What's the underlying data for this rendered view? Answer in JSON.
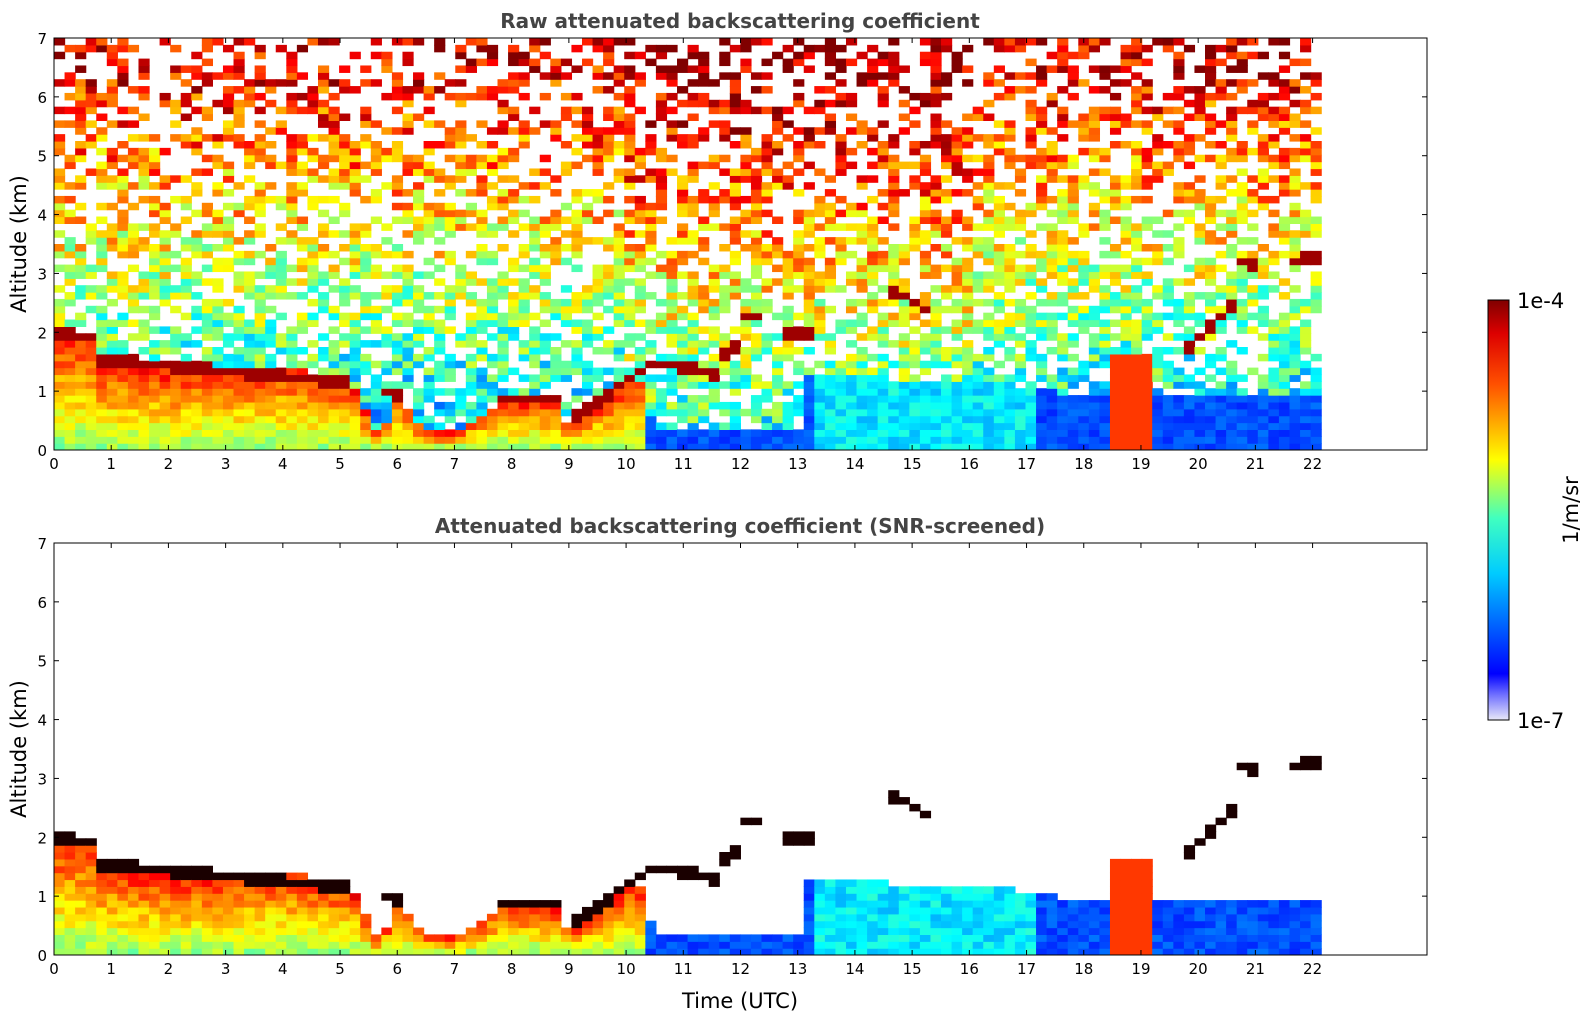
{
  "chart_data": [
    {
      "type": "heatmap",
      "title": "Raw attenuated backscattering coefficient",
      "xlabel": "",
      "ylabel": "Altitude (km)",
      "xlim": [
        0,
        24
      ],
      "ylim": [
        0,
        7
      ],
      "xticks": [
        "0",
        "1",
        "2",
        "3",
        "4",
        "5",
        "6",
        "7",
        "8",
        "9",
        "10",
        "11",
        "12",
        "13",
        "14",
        "15",
        "16",
        "17",
        "18",
        "19",
        "20",
        "21",
        "22"
      ],
      "yticks": [
        "0",
        "1",
        "2",
        "3",
        "4",
        "5",
        "6",
        "7"
      ],
      "data_end_time": 22.15,
      "screened": false,
      "cloud_layers": [
        {
          "t": [
            0,
            0.7
          ],
          "alt": [
            2.0,
            1.9
          ]
        },
        {
          "t": [
            0.7,
            5.2
          ],
          "alt": [
            1.55,
            1.15
          ]
        },
        {
          "t": [
            5.8,
            6.0
          ],
          "alt": [
            1.0,
            0.95
          ]
        },
        {
          "t": [
            7.8,
            8.8
          ],
          "alt": [
            0.85,
            0.85
          ]
        },
        {
          "t": [
            9.0,
            10.5
          ],
          "alt": [
            0.5,
            1.5
          ]
        },
        {
          "t": [
            10.5,
            11.6
          ],
          "alt": [
            1.5,
            1.3
          ]
        },
        {
          "t": [
            11.6,
            12.0
          ],
          "alt": [
            1.6,
            1.8
          ]
        },
        {
          "t": [
            12.0,
            12.3
          ],
          "alt": [
            2.3,
            2.3
          ]
        },
        {
          "t": [
            12.7,
            13.2
          ],
          "alt": [
            2.0,
            2.0
          ]
        },
        {
          "t": [
            14.5,
            15.4
          ],
          "alt": [
            2.8,
            2.3
          ]
        },
        {
          "t": [
            19.8,
            20.6
          ],
          "alt": [
            1.7,
            2.5
          ]
        },
        {
          "t": [
            20.6,
            21.0
          ],
          "alt": [
            3.3,
            3.1
          ]
        },
        {
          "t": [
            21.6,
            22.15
          ],
          "alt": [
            3.2,
            3.3
          ]
        }
      ]
    },
    {
      "type": "heatmap",
      "title": "Attenuated backscattering coefficient (SNR-screened)",
      "xlabel": "Time (UTC)",
      "ylabel": "Altitude (km)",
      "xlim": [
        0,
        24
      ],
      "ylim": [
        0,
        7
      ],
      "xticks": [
        "0",
        "1",
        "2",
        "3",
        "4",
        "5",
        "6",
        "7",
        "8",
        "9",
        "10",
        "11",
        "12",
        "13",
        "14",
        "15",
        "16",
        "17",
        "18",
        "19",
        "20",
        "21",
        "22"
      ],
      "yticks": [
        "0",
        "1",
        "2",
        "3",
        "4",
        "5",
        "6",
        "7"
      ],
      "data_end_time": 22.15,
      "screened": true
    }
  ],
  "colorbar": {
    "label": "1/m/sr",
    "max_label": "1e-4",
    "min_label": "1e-7",
    "min": 1e-07,
    "max": 0.0001,
    "scale": "log",
    "colormap": "jet"
  }
}
